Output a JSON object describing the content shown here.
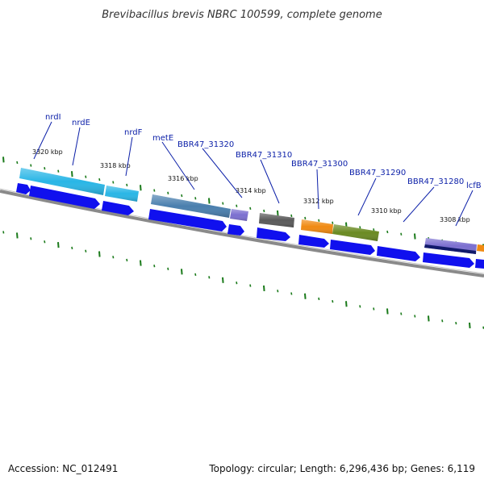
{
  "title": "Brevibacillus brevis NBRC 100599, complete genome",
  "footer": {
    "accession": "Accession: NC_012491",
    "summary": "Topology: circular; Length: 6,296,436 bp; Genes: 6,119"
  },
  "colors": {
    "backbone": "#8a8a8a",
    "tick": "#1a7a1a",
    "label": "#0b1fa8",
    "cds_arrow": "#1010ee"
  },
  "kbp_ticks": [
    "3320 kbp",
    "3318 kbp",
    "3316 kbp",
    "3314 kbp",
    "3312 kbp",
    "3310 kbp",
    "3308 kbp"
  ],
  "gene_labels": [
    "nrdI",
    "nrdE",
    "nrdF",
    "metE",
    "BBR47_31320",
    "BBR47_31310",
    "BBR47_31300",
    "BBR47_31290",
    "BBR47_31280",
    "lcfB"
  ],
  "gene_blocks": [
    {
      "gene": "nrdE",
      "color": "#29b6e6"
    },
    {
      "gene": "nrdF",
      "color": "#29b6e6"
    },
    {
      "gene": "metE",
      "color": "#4a7fae"
    },
    {
      "gene": "BBR47_31320",
      "color": "#7b6fd0"
    },
    {
      "gene": "BBR47_31310",
      "color": "#5a5a5a"
    },
    {
      "gene": "BBR47_31300",
      "color": "#f08a12"
    },
    {
      "gene": "BBR47_31290",
      "color": "#6a8a22"
    },
    {
      "gene": "BBR47_31280",
      "color": "#7b6fd0"
    },
    {
      "gene": "lcfB",
      "color": "#f08a12"
    }
  ]
}
